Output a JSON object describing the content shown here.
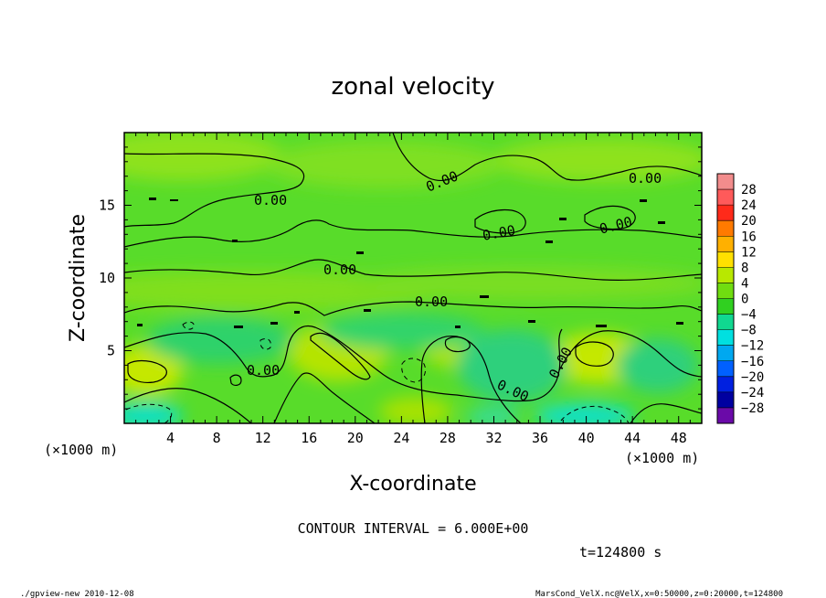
{
  "chart_data": {
    "type": "heatmap",
    "title": "zonal velocity",
    "xlabel": "X-coordinate",
    "ylabel": "Z-coordinate",
    "x_unit": "(×1000 m)",
    "y_unit": "(×1000 m)",
    "xlim": [
      0,
      50
    ],
    "ylim": [
      0,
      20
    ],
    "x_ticks": [
      4,
      8,
      12,
      16,
      20,
      24,
      28,
      32,
      36,
      40,
      44,
      48
    ],
    "y_ticks": [
      5,
      10,
      15
    ],
    "contour_labels": [
      "0.00",
      "0.00",
      "0.00",
      "0.00",
      "0.00",
      "0.00",
      "0.00",
      "0.00",
      "0.00",
      "0.00"
    ],
    "colorbar": {
      "levels": [
        28,
        24,
        20,
        16,
        12,
        8,
        4,
        0,
        -4,
        -8,
        -12,
        -16,
        -20,
        -24,
        -28
      ],
      "level_labels": [
        "28",
        "24",
        "20",
        "16",
        "12",
        "8",
        "4",
        "0",
        "−4",
        "−8",
        "−12",
        "−16",
        "−20",
        "−24",
        "−28"
      ],
      "colors": [
        "#f28c8c",
        "#ff5a5a",
        "#ff2a1a",
        "#ff7a00",
        "#ffb000",
        "#ffe000",
        "#b8e800",
        "#70dd10",
        "#30d020",
        "#10d890",
        "#00e0e0",
        "#00a8f0",
        "#0060ff",
        "#0020e0",
        "#0000a0",
        "#6a0aa8"
      ]
    },
    "contour_interval": "CONTOUR INTERVAL = 6.000E+00",
    "time": "t=124800 s",
    "data_note_high_regions": [
      {
        "x": 1.5,
        "z": 4.0,
        "level": "high"
      },
      {
        "x": 17,
        "z": 5.5,
        "level": "high"
      },
      {
        "x": 28,
        "z": 5.5,
        "level": "high"
      },
      {
        "x": 40.5,
        "z": 5.0,
        "level": "high"
      }
    ]
  },
  "footer": {
    "left": "./gpview-new  2010-12-08",
    "right": "MarsCond_VelX.nc@VelX,x=0:50000,z=0:20000,t=124800"
  }
}
